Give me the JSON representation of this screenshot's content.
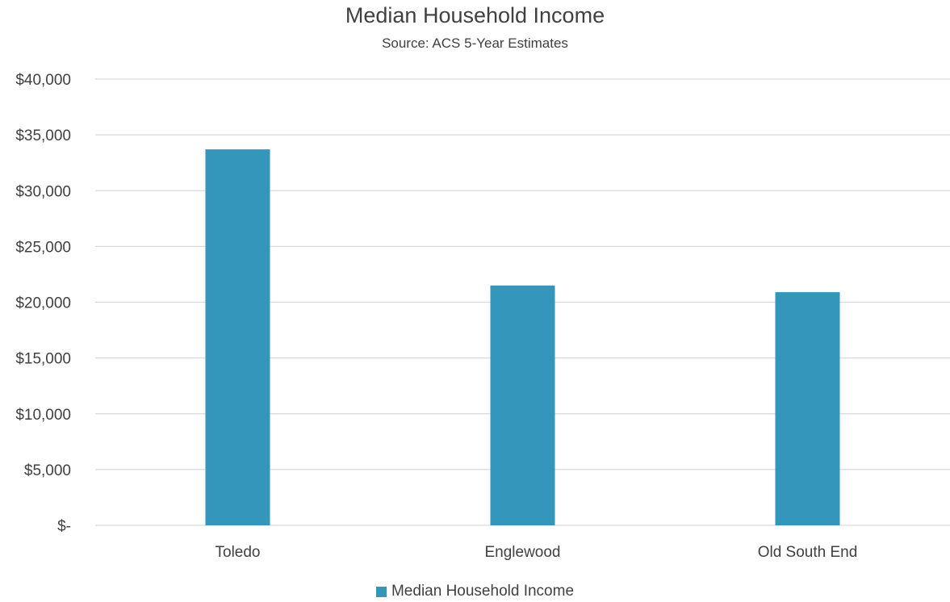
{
  "chart_data": {
    "type": "bar",
    "title": "Median Household Income",
    "subtitle": "Source: ACS 5-Year Estimates",
    "categories": [
      "Toledo",
      "Englewood",
      "Old South End"
    ],
    "series": [
      {
        "name": "Median Household Income",
        "values": [
          33700,
          21500,
          20900
        ],
        "color": "#3596BC"
      }
    ],
    "xlabel": "",
    "ylabel": "",
    "ylim": [
      0,
      40000
    ],
    "yticks": [
      0,
      5000,
      10000,
      15000,
      20000,
      25000,
      30000,
      35000,
      40000
    ],
    "ytick_labels": [
      "$-",
      "$5,000",
      "$10,000",
      "$15,000",
      "$20,000",
      "$25,000",
      "$30,000",
      "$35,000",
      "$40,000"
    ],
    "grid": true,
    "legend_position": "bottom"
  }
}
